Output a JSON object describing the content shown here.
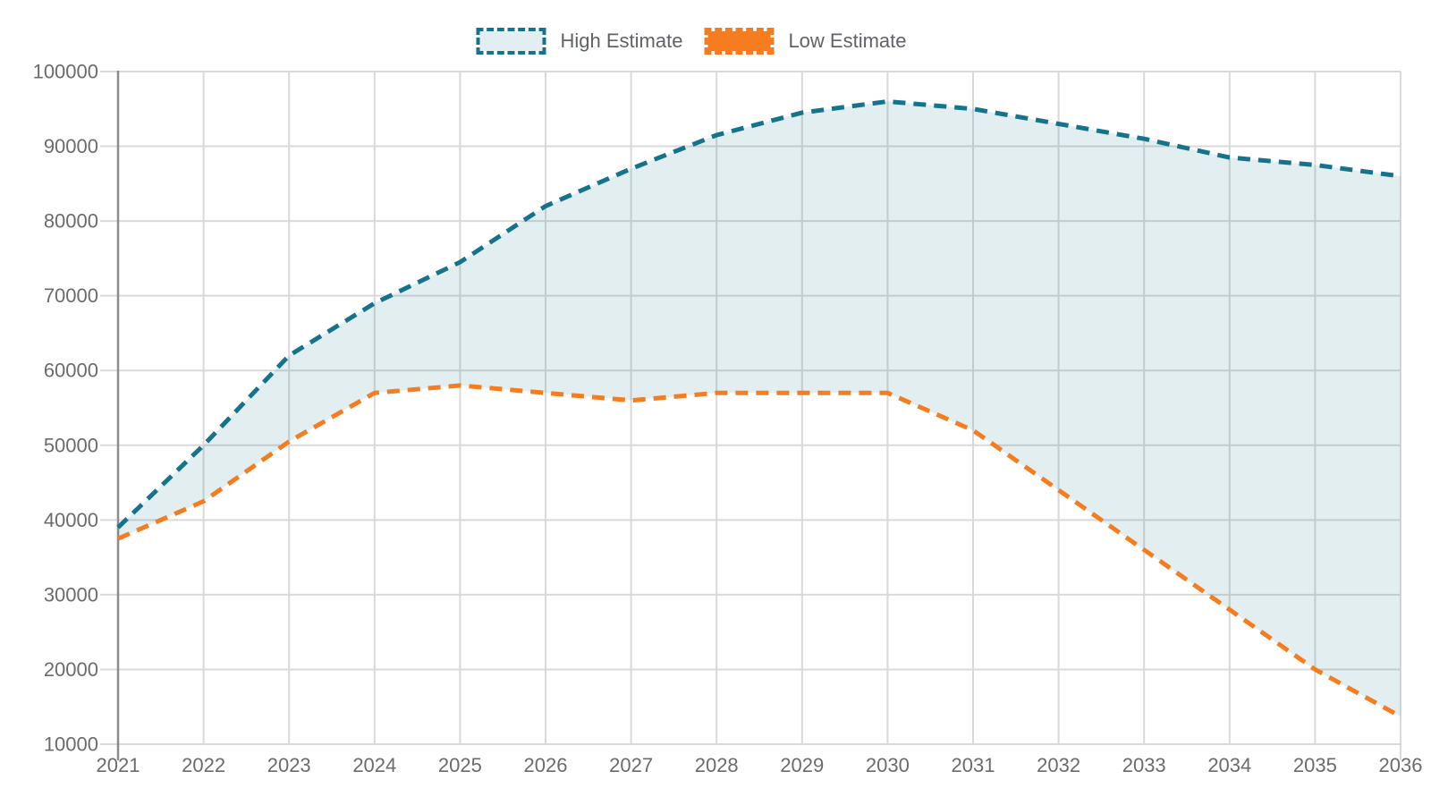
{
  "chart_data": {
    "type": "area",
    "title": "",
    "x": [
      2021,
      2022,
      2023,
      2024,
      2025,
      2026,
      2027,
      2028,
      2029,
      2030,
      2031,
      2032,
      2033,
      2034,
      2035,
      2036
    ],
    "series": [
      {
        "name": "High Estimate",
        "color": "#16738c",
        "values": [
          39000,
          50000,
          62000,
          69000,
          74500,
          82000,
          87000,
          91500,
          94500,
          96000,
          95000,
          93000,
          91000,
          88500,
          87500,
          86000
        ]
      },
      {
        "name": "Low Estimate",
        "color": "#f57d1f",
        "values": [
          37500,
          42500,
          50500,
          57000,
          58000,
          57000,
          56000,
          57000,
          57000,
          57000,
          52000,
          44000,
          36000,
          28000,
          20000,
          13700
        ]
      }
    ],
    "band": {
      "fill": "#16738c",
      "fill_opacity": 0.12,
      "between": [
        "High Estimate",
        "Low Estimate"
      ]
    },
    "ylim": [
      10000,
      100000
    ],
    "ytick_step": 10000,
    "y_tick_labels": [
      "10000",
      "20000",
      "30000",
      "40000",
      "50000",
      "60000",
      "70000",
      "80000",
      "90000",
      "100000"
    ],
    "x_tick_labels": [
      "2021",
      "2022",
      "2023",
      "2024",
      "2025",
      "2026",
      "2027",
      "2028",
      "2029",
      "2030",
      "2031",
      "2032",
      "2033",
      "2034",
      "2035",
      "2036"
    ],
    "grid": true,
    "legend_position": "top-center",
    "line_style": "dashed"
  },
  "legend": [
    {
      "label": "High Estimate",
      "swatch_fill": "#e3eef2",
      "swatch_border": "#16738c"
    },
    {
      "label": "Low Estimate",
      "swatch_fill": "#f57d1f",
      "swatch_border": "#f57d1f"
    }
  ],
  "style_colors": {
    "grid": "#d9d9d9",
    "axis_spine": "#8c8c8c",
    "tick_text": "#6b6b6b"
  }
}
